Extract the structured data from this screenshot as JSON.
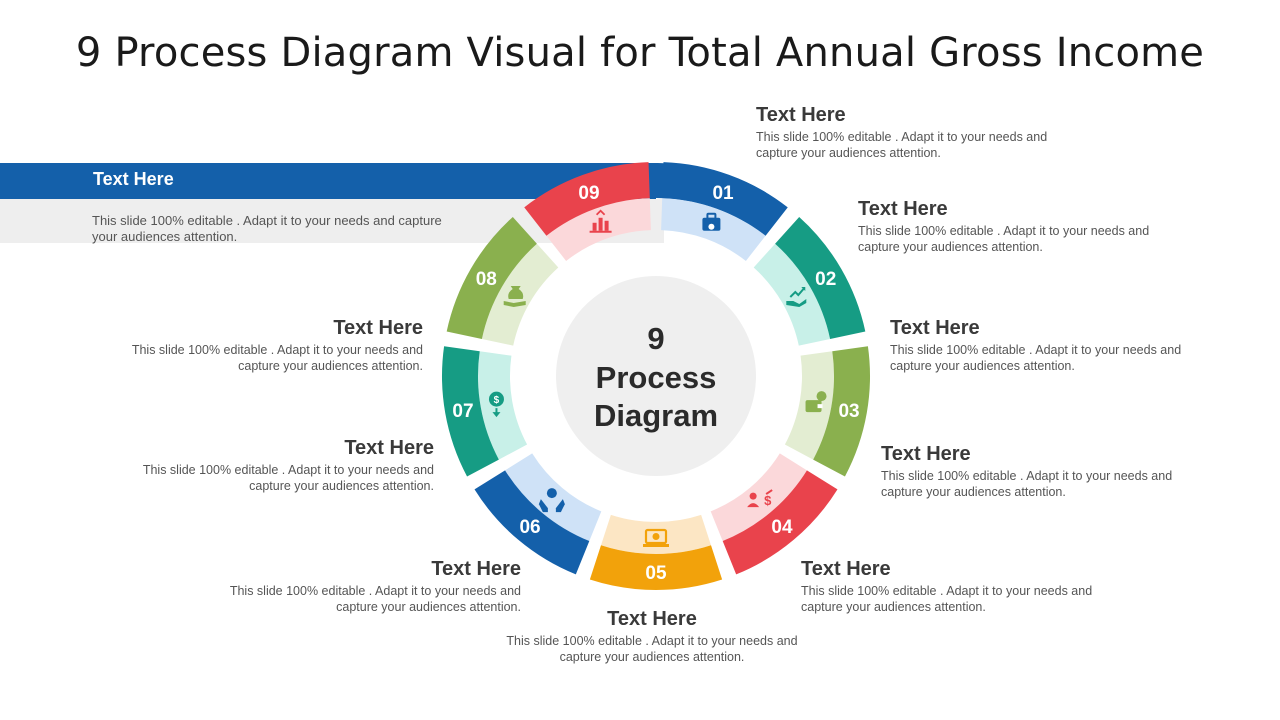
{
  "title": "9 Process Diagram Visual for Total Annual Gross Income",
  "center_label": [
    "9",
    "Process",
    "Diagram"
  ],
  "banner": {
    "heading": "Text Here",
    "description": "This slide 100% editable . Adapt it to your needs and capture your audiences attention."
  },
  "steps": [
    {
      "num": "01",
      "icon": "briefcase-money-icon",
      "color": "#1460AA",
      "light": "#CFE2F7",
      "heading": "Text Here",
      "description": "This slide 100% editable . Adapt it to your needs and capture your audiences attention."
    },
    {
      "num": "02",
      "icon": "growth-hand-icon",
      "color": "#169C84",
      "light": "#C8F0E8",
      "heading": "Text Here",
      "description": "This slide 100% editable . Adapt it to your needs and capture your audiences attention."
    },
    {
      "num": "03",
      "icon": "wallet-coin-icon",
      "color": "#8AB04E",
      "light": "#E3EDD2",
      "heading": "Text Here",
      "description": "This slide 100% editable . Adapt it to your needs and capture your audiences attention."
    },
    {
      "num": "04",
      "icon": "people-dollar-icon",
      "color": "#E9434C",
      "light": "#FBD8DA",
      "heading": "Text Here",
      "description": "This slide 100% editable . Adapt it to your needs and capture your audiences attention."
    },
    {
      "num": "05",
      "icon": "laptop-dollar-icon",
      "color": "#F2A20B",
      "light": "#FCE6C4",
      "heading": "Text Here",
      "description": "This slide 100% editable . Adapt it to your needs and capture your audiences attention."
    },
    {
      "num": "06",
      "icon": "hands-dollar-icon",
      "color": "#1460AA",
      "light": "#CFE2F7",
      "heading": "Text Here",
      "description": "This slide 100% editable . Adapt it to your needs and capture your audiences attention."
    },
    {
      "num": "07",
      "icon": "coin-arrow-icon",
      "color": "#169C84",
      "light": "#C8F0E8",
      "heading": "Text Here",
      "description": "This slide 100% editable . Adapt it to your needs and capture your audiences attention."
    },
    {
      "num": "08",
      "icon": "hand-moneybag-icon",
      "color": "#8AB04E",
      "light": "#E3EDD2",
      "heading": "Text Here",
      "description": "This slide 100% editable . Adapt it to your needs and capture your audiences attention."
    },
    {
      "num": "09",
      "icon": "bar-chart-icon",
      "color": "#E9434C",
      "light": "#FBD8DA",
      "heading": "Text Here",
      "description": "This slide 100% editable . Adapt it to your needs and capture your audiences attention."
    }
  ]
}
